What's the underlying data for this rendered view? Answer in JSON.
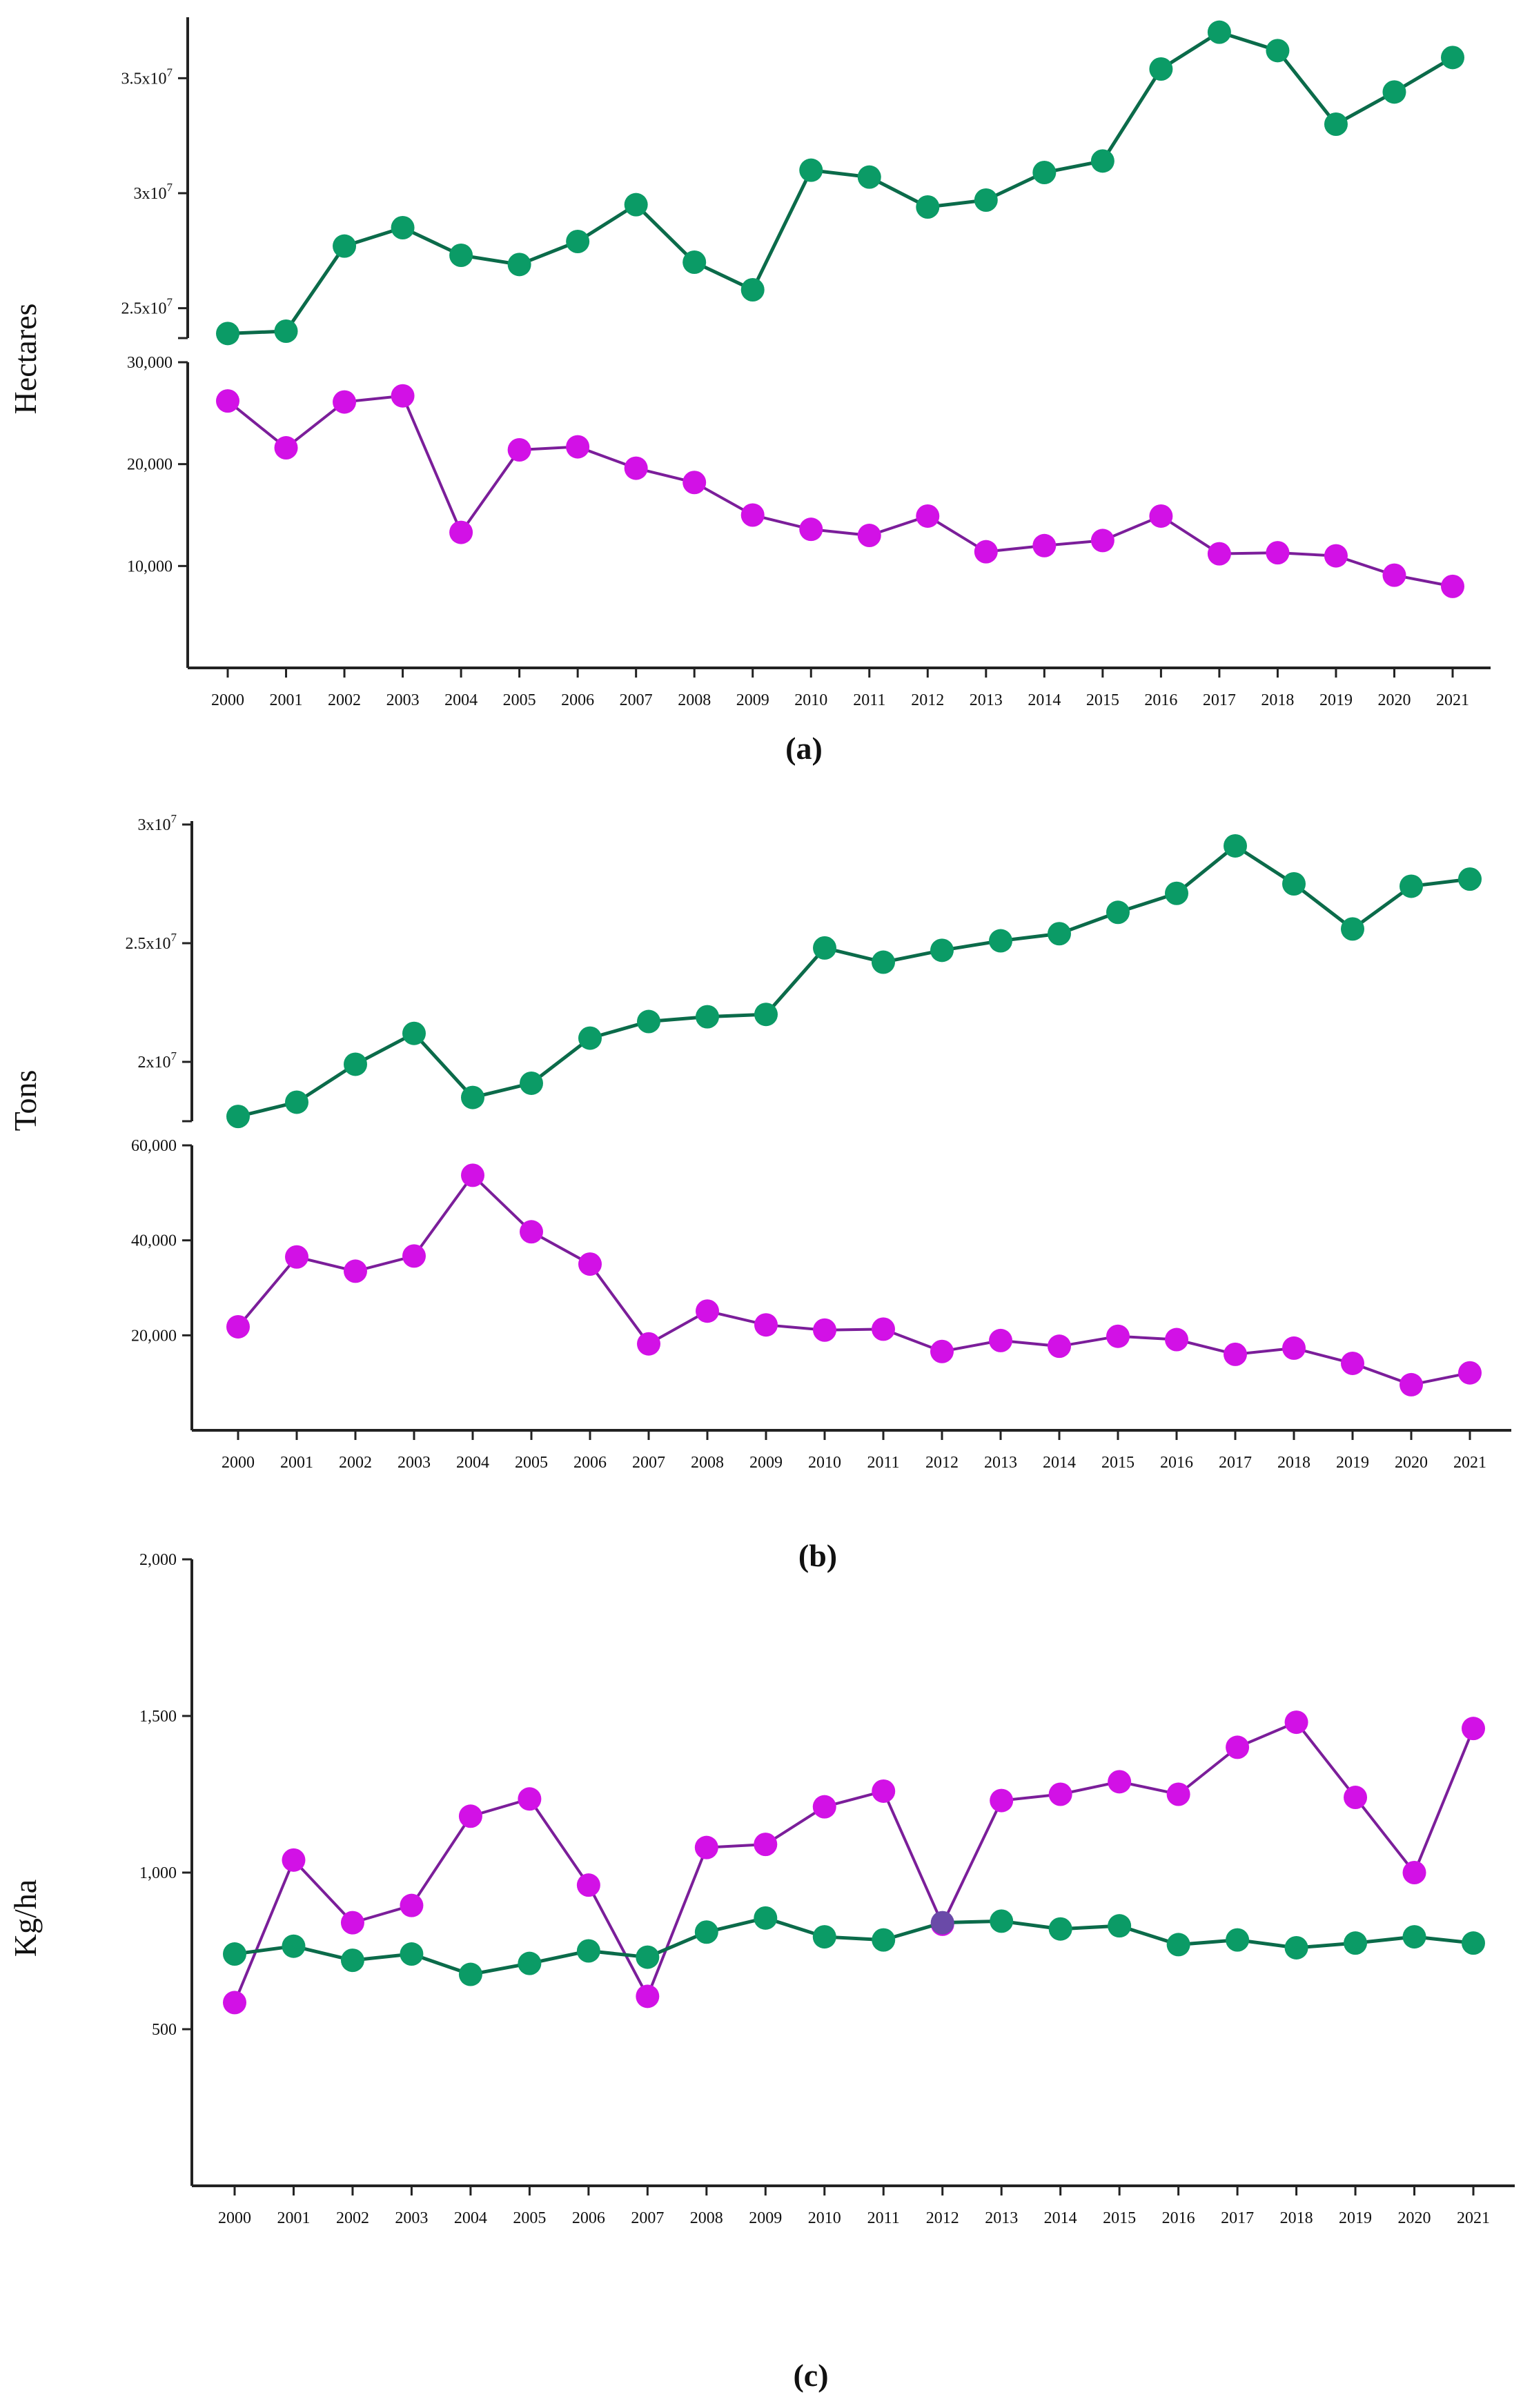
{
  "colors": {
    "green": "#0b9b66",
    "green_line": "#0b6b4a",
    "purple": "#d211e6",
    "purple_line": "#7b1e9a",
    "overlap": "#6a4aa8"
  },
  "chart_data": [
    {
      "type": "line",
      "panel_label": "(a)",
      "ylabel": "Hectares",
      "broken_axis": true,
      "categories": [
        "2000",
        "2001",
        "2002",
        "2003",
        "2004",
        "2005",
        "2006",
        "2007",
        "2008",
        "2009",
        "2010",
        "2011",
        "2012",
        "2013",
        "2014",
        "2015",
        "2016",
        "2017",
        "2018",
        "2019",
        "2020",
        "2021"
      ],
      "upper": {
        "ylim": [
          23700000,
          37500000
        ],
        "ticks": [
          {
            "value": 25000000,
            "base": "2.5x10",
            "exp": "7"
          },
          {
            "value": 30000000,
            "base": "3x10",
            "exp": "7"
          },
          {
            "value": 35000000,
            "base": "3.5x10",
            "exp": "7"
          }
        ],
        "series": {
          "name": "upper",
          "color": "green",
          "values": [
            23900000,
            24000000,
            27700000,
            28500000,
            27300000,
            26900000,
            27900000,
            29500000,
            27000000,
            25800000,
            31000000,
            30700000,
            29400000,
            29700000,
            30900000,
            31400000,
            35400000,
            37000000,
            36200000,
            33000000,
            34400000,
            35900000
          ]
        }
      },
      "lower": {
        "ylim": [
          0,
          30000
        ],
        "ticks": [
          {
            "value": 10000,
            "label": "10,000"
          },
          {
            "value": 20000,
            "label": "20,000"
          },
          {
            "value": 30000,
            "label": "30,000"
          }
        ],
        "series": {
          "name": "lower",
          "color": "purple",
          "values": [
            26200,
            21600,
            26100,
            26700,
            13300,
            21400,
            21700,
            19600,
            18200,
            15000,
            13600,
            13000,
            14900,
            11400,
            12000,
            12500,
            14900,
            11200,
            11300,
            11000,
            9100,
            8000
          ]
        }
      }
    },
    {
      "type": "line",
      "panel_label": "(b)",
      "ylabel": "Tons",
      "broken_axis": true,
      "categories": [
        "2000",
        "2001",
        "2002",
        "2003",
        "2004",
        "2005",
        "2006",
        "2007",
        "2008",
        "2009",
        "2010",
        "2011",
        "2012",
        "2013",
        "2014",
        "2015",
        "2016",
        "2017",
        "2018",
        "2019",
        "2020",
        "2021"
      ],
      "upper": {
        "ylim": [
          17500000,
          30000000
        ],
        "ticks": [
          {
            "value": 20000000,
            "base": "2x10",
            "exp": "7"
          },
          {
            "value": 25000000,
            "base": "2.5x10",
            "exp": "7"
          },
          {
            "value": 30000000,
            "base": "3x10",
            "exp": "7"
          }
        ],
        "series": {
          "name": "upper",
          "color": "green",
          "values": [
            17700000,
            18300000,
            19900000,
            21200000,
            18500000,
            19100000,
            21000000,
            21700000,
            21900000,
            22000000,
            24800000,
            24200000,
            24700000,
            25100000,
            25400000,
            26300000,
            27100000,
            29100000,
            27500000,
            25600000,
            27400000,
            27700000
          ]
        }
      },
      "lower": {
        "ylim": [
          0,
          60000
        ],
        "ticks": [
          {
            "value": 20000,
            "label": "20,000"
          },
          {
            "value": 40000,
            "label": "40,000"
          },
          {
            "value": 60000,
            "label": "60,000"
          }
        ],
        "series": {
          "name": "lower",
          "color": "purple",
          "values": [
            21800,
            36500,
            33500,
            36700,
            53700,
            41800,
            35000,
            18200,
            25100,
            22200,
            21100,
            21300,
            16600,
            18900,
            17700,
            19800,
            19100,
            16000,
            17300,
            14100,
            9600,
            12100
          ]
        }
      }
    },
    {
      "type": "line",
      "panel_label": "(c)",
      "ylabel": "Kg/ha",
      "broken_axis": false,
      "categories": [
        "2000",
        "2001",
        "2002",
        "2003",
        "2004",
        "2005",
        "2006",
        "2007",
        "2008",
        "2009",
        "2010",
        "2011",
        "2012",
        "2013",
        "2014",
        "2015",
        "2016",
        "2017",
        "2018",
        "2019",
        "2020",
        "2021"
      ],
      "ylim": [
        0,
        2000
      ],
      "ticks": [
        {
          "value": 500,
          "label": "500"
        },
        {
          "value": 1000,
          "label": "1,000"
        },
        {
          "value": 1500,
          "label": "1,500"
        },
        {
          "value": 2000,
          "label": "2,000"
        }
      ],
      "series": [
        {
          "name": "green",
          "color": "green",
          "values": [
            740,
            765,
            720,
            740,
            675,
            710,
            750,
            730,
            810,
            855,
            795,
            785,
            840,
            845,
            820,
            830,
            770,
            785,
            760,
            775,
            795,
            775
          ]
        },
        {
          "name": "purple",
          "color": "purple",
          "values": [
            585,
            1040,
            840,
            895,
            1180,
            1235,
            960,
            605,
            1080,
            1090,
            1210,
            1260,
            835,
            1230,
            1250,
            1290,
            1250,
            1400,
            1480,
            1240,
            1000,
            1460
          ]
        }
      ]
    }
  ]
}
